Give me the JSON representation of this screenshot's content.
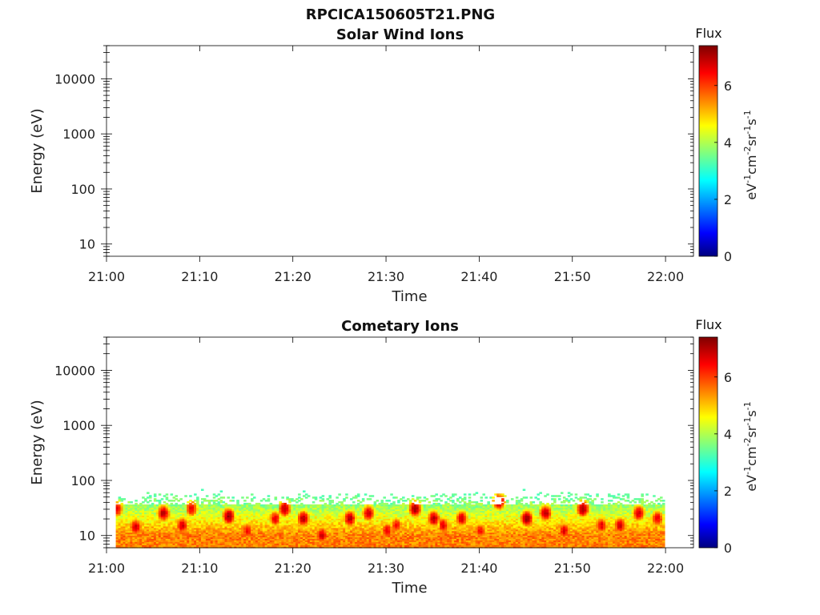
{
  "figure": {
    "title": "RPCICA150605T21.PNG"
  },
  "colorbar": {
    "label": "Flux",
    "unit_parts": [
      "eV",
      "-1",
      "cm",
      "-2",
      "sr",
      "-1",
      "s",
      "-1"
    ],
    "ticks": [
      "0",
      "2",
      "4",
      "6"
    ],
    "range": [
      0,
      7.4
    ],
    "colormap": "jet",
    "colors": [
      "#00007f",
      "#0000ff",
      "#00ffff",
      "#ffff00",
      "#ff0000",
      "#7f0000"
    ]
  },
  "chart_data": [
    {
      "type": "heatmap",
      "title": "Solar Wind Ions",
      "xlabel": "Time",
      "ylabel": "Energy (eV)",
      "x_ticks": [
        "21:00",
        "21:10",
        "21:20",
        "21:30",
        "21:40",
        "21:50",
        "22:00"
      ],
      "y_ticks": [
        "10",
        "100",
        "1000",
        "10000"
      ],
      "y_scale": "log",
      "xlim": [
        "21:00",
        "22:03"
      ],
      "ylim": [
        6,
        40000
      ],
      "cells": []
    },
    {
      "type": "heatmap",
      "title": "Cometary Ions",
      "xlabel": "Time",
      "ylabel": "Energy (eV)",
      "x_ticks": [
        "21:00",
        "21:10",
        "21:20",
        "21:30",
        "21:40",
        "21:50",
        "22:00"
      ],
      "y_ticks": [
        "10",
        "100",
        "1000",
        "10000"
      ],
      "y_scale": "log",
      "xlim": [
        "21:00",
        "22:03"
      ],
      "ylim": [
        6,
        40000
      ],
      "energy_range_eV": [
        6,
        80
      ],
      "time_range": [
        "21:01",
        "21:59"
      ],
      "peaks": [
        {
          "time": "21:01",
          "energy_eV": 30,
          "flux": 6.6
        },
        {
          "time": "21:03",
          "energy_eV": 14,
          "flux": 6.8
        },
        {
          "time": "21:06",
          "energy_eV": 25,
          "flux": 7.0
        },
        {
          "time": "21:08",
          "energy_eV": 15,
          "flux": 6.8
        },
        {
          "time": "21:09",
          "energy_eV": 30,
          "flux": 6.6
        },
        {
          "time": "21:13",
          "energy_eV": 22,
          "flux": 7.2
        },
        {
          "time": "21:15",
          "energy_eV": 12,
          "flux": 6.4
        },
        {
          "time": "21:18",
          "energy_eV": 20,
          "flux": 6.6
        },
        {
          "time": "21:19",
          "energy_eV": 30,
          "flux": 7.0
        },
        {
          "time": "21:21",
          "energy_eV": 20,
          "flux": 7.0
        },
        {
          "time": "21:23",
          "energy_eV": 10,
          "flux": 6.8
        },
        {
          "time": "21:26",
          "energy_eV": 20,
          "flux": 7.0
        },
        {
          "time": "21:28",
          "energy_eV": 25,
          "flux": 6.8
        },
        {
          "time": "21:30",
          "energy_eV": 12,
          "flux": 6.6
        },
        {
          "time": "21:31",
          "energy_eV": 15,
          "flux": 6.4
        },
        {
          "time": "21:33",
          "energy_eV": 30,
          "flux": 7.2
        },
        {
          "time": "21:35",
          "energy_eV": 20,
          "flux": 7.0
        },
        {
          "time": "21:36",
          "energy_eV": 15,
          "flux": 6.6
        },
        {
          "time": "21:38",
          "energy_eV": 20,
          "flux": 6.8
        },
        {
          "time": "21:40",
          "energy_eV": 12,
          "flux": 6.4
        },
        {
          "time": "21:42",
          "energy_eV": 40,
          "flux": 7.0
        },
        {
          "time": "21:45",
          "energy_eV": 20,
          "flux": 7.2
        },
        {
          "time": "21:47",
          "energy_eV": 25,
          "flux": 7.0
        },
        {
          "time": "21:49",
          "energy_eV": 12,
          "flux": 6.6
        },
        {
          "time": "21:51",
          "energy_eV": 30,
          "flux": 7.2
        },
        {
          "time": "21:53",
          "energy_eV": 15,
          "flux": 6.6
        },
        {
          "time": "21:55",
          "energy_eV": 15,
          "flux": 6.8
        },
        {
          "time": "21:57",
          "energy_eV": 25,
          "flux": 6.8
        },
        {
          "time": "21:59",
          "energy_eV": 20,
          "flux": 6.6
        }
      ]
    }
  ]
}
